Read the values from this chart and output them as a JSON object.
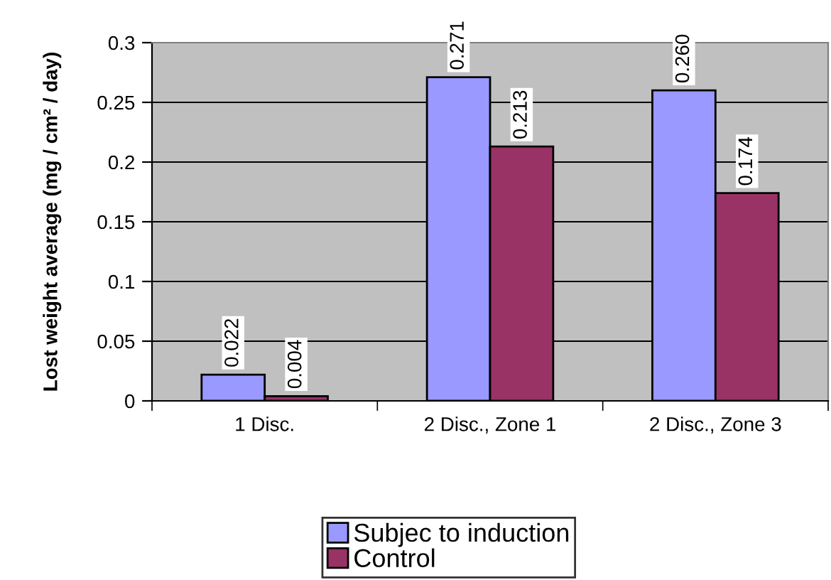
{
  "chart_data": {
    "type": "bar",
    "ylabel": "Lost weight average (mg / cm² / day)",
    "categories": [
      "1 Disc.",
      "2 Disc., Zone 1",
      "2 Disc., Zone 3"
    ],
    "series": [
      {
        "name": "Subjec to induction",
        "color": "#9999ff",
        "values": [
          0.022,
          0.271,
          0.26
        ],
        "value_labels": [
          "0.022",
          "0.271",
          "0.260"
        ]
      },
      {
        "name": "Control",
        "color": "#993366",
        "values": [
          0.004,
          0.213,
          0.174
        ],
        "value_labels": [
          "0.004",
          "0.213",
          "0.174"
        ]
      }
    ],
    "ylim": [
      0,
      0.3
    ],
    "yticks": [
      0,
      0.05,
      0.1,
      0.15,
      0.2,
      0.25,
      0.3
    ],
    "grid": "y",
    "legend": "bottom"
  }
}
